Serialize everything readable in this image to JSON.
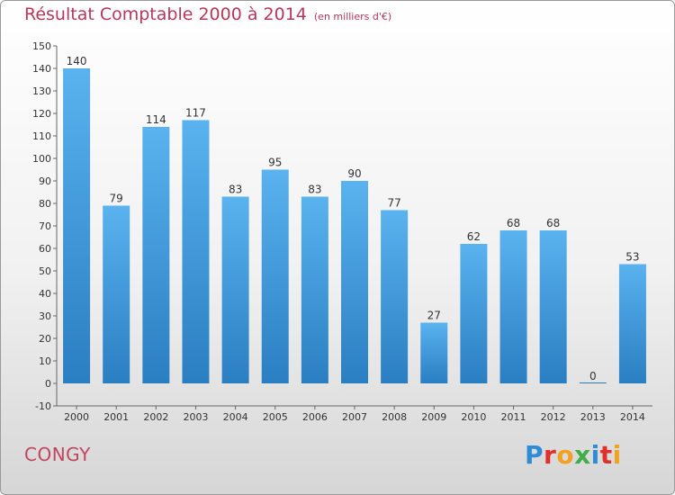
{
  "header": {
    "title": "Résultat Comptable 2000 à 2014",
    "subtitle": "(en milliers d'€)"
  },
  "footer": {
    "city": "CONGY",
    "logo_letters": [
      "P",
      "r",
      "o",
      "x",
      "i",
      "t",
      "i"
    ],
    "logo_colors": [
      "#2e8bd6",
      "#e0302c",
      "#f2a21e",
      "#3fae49",
      "#2e8bd6",
      "#e0302c",
      "#f2a21e"
    ]
  },
  "colors": {
    "bar_top": "#5ab2ee",
    "bar_bottom": "#2a7ec2",
    "zero_bar": "#2a7ec2",
    "title": "#b5385a",
    "axis": "#666666"
  },
  "chart_data": {
    "type": "bar",
    "categories": [
      "2000",
      "2001",
      "2002",
      "2003",
      "2004",
      "2005",
      "2006",
      "2007",
      "2008",
      "2009",
      "2010",
      "2011",
      "2012",
      "2013",
      "2014"
    ],
    "values": [
      140,
      79,
      114,
      117,
      83,
      95,
      83,
      90,
      77,
      27,
      62,
      68,
      68,
      0,
      53
    ],
    "ylim": [
      -10,
      150
    ],
    "yticks": [
      -10,
      0,
      10,
      20,
      30,
      40,
      50,
      60,
      70,
      80,
      90,
      100,
      110,
      120,
      130,
      140,
      150
    ],
    "grid": false
  }
}
